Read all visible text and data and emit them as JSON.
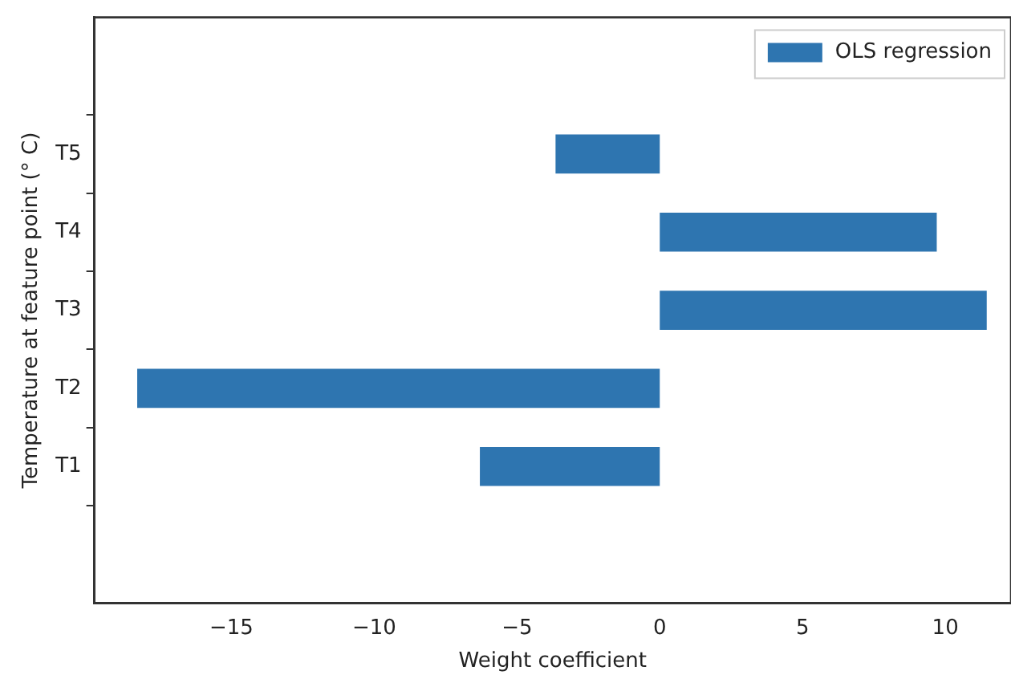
{
  "chart_data": {
    "type": "bar",
    "orientation": "horizontal",
    "xlabel": "Weight coefficient",
    "ylabel": "Temperature at feature point (° C)",
    "categories": [
      "T5",
      "T4",
      "T3",
      "T2",
      "T1"
    ],
    "series": [
      {
        "name": "OLS regression",
        "color": "#2e75b0",
        "values": [
          -3.65,
          9.7,
          11.45,
          -18.3,
          -6.3
        ]
      }
    ],
    "xlim": [
      -19.8,
      12.3
    ],
    "xticks": [
      -15,
      -10,
      -5,
      0,
      5,
      10
    ],
    "grid": false,
    "legend": "top right"
  }
}
